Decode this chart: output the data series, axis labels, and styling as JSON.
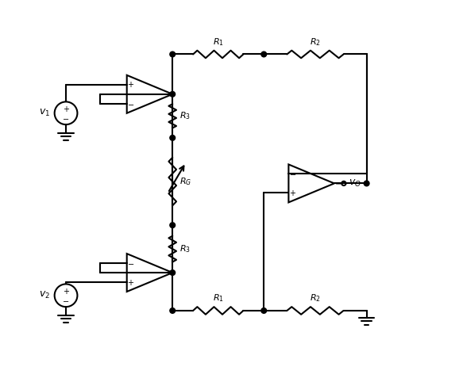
{
  "figure_width": 5.83,
  "figure_height": 4.82,
  "dpi": 100,
  "line_color": "black",
  "line_width": 1.5,
  "background_color": "white"
}
